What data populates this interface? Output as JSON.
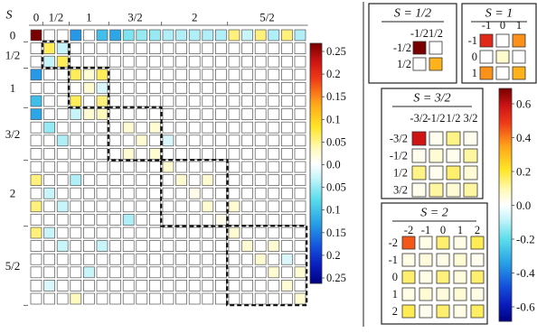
{
  "chart_data": [
    {
      "type": "heatmap",
      "name": "main-matrix",
      "row_axis_label": "S",
      "block_labels": [
        "0",
        "1/2",
        "1",
        "3/2",
        "2",
        "5/2"
      ],
      "block_sizes": [
        1,
        2,
        3,
        4,
        5,
        6
      ],
      "size": 21,
      "colorbar": {
        "ticks": [
          "0.25",
          "0.2",
          "0.15",
          "0.1",
          "0.05",
          "0.0",
          "0.05",
          "0.1",
          "0.15",
          "0.2",
          "0.25"
        ],
        "range": [
          -0.25,
          0.25
        ]
      },
      "cells": [
        [
          0,
          0,
          0.25
        ],
        [
          0,
          3,
          -0.13
        ],
        [
          0,
          5,
          -0.1
        ],
        [
          0,
          6,
          -0.12
        ],
        [
          0,
          7,
          -0.06
        ],
        [
          0,
          8,
          -0.05
        ],
        [
          0,
          9,
          -0.05
        ],
        [
          0,
          10,
          -0.04
        ],
        [
          0,
          11,
          -0.04
        ],
        [
          0,
          12,
          -0.04
        ],
        [
          0,
          13,
          -0.04
        ],
        [
          0,
          14,
          -0.04
        ],
        [
          0,
          15,
          0.05
        ],
        [
          0,
          16,
          -0.03
        ],
        [
          0,
          17,
          0.05
        ],
        [
          0,
          18,
          -0.04
        ],
        [
          0,
          19,
          0.05
        ],
        [
          0,
          20,
          -0.04
        ],
        [
          1,
          1,
          0.06
        ],
        [
          1,
          2,
          -0.03
        ],
        [
          2,
          1,
          -0.03
        ],
        [
          2,
          2,
          0.06
        ],
        [
          3,
          0,
          -0.13
        ],
        [
          5,
          0,
          -0.1
        ],
        [
          6,
          0,
          -0.12
        ],
        [
          3,
          3,
          0.06
        ],
        [
          3,
          4,
          0.02
        ],
        [
          3,
          5,
          0.06
        ],
        [
          4,
          4,
          0.02
        ],
        [
          4,
          5,
          -0.02
        ],
        [
          5,
          3,
          0.06
        ],
        [
          5,
          5,
          0.05
        ],
        [
          6,
          3,
          -0.03
        ],
        [
          6,
          4,
          0.02
        ],
        [
          6,
          5,
          0.03
        ],
        [
          7,
          1,
          -0.05
        ],
        [
          8,
          2,
          -0.04
        ],
        [
          7,
          7,
          0.02
        ],
        [
          8,
          8,
          0.02
        ],
        [
          9,
          9,
          0.02
        ],
        [
          10,
          10,
          0.02
        ],
        [
          7,
          9,
          0.02
        ],
        [
          9,
          7,
          0.02
        ],
        [
          8,
          10,
          -0.02
        ],
        [
          11,
          3,
          -0.04
        ],
        [
          12,
          1,
          -0.03
        ],
        [
          13,
          2,
          -0.03
        ],
        [
          11,
          0,
          0.05
        ],
        [
          13,
          0,
          0.05
        ],
        [
          15,
          0,
          0.05
        ],
        [
          15,
          1,
          -0.03
        ],
        [
          16,
          2,
          -0.03
        ],
        [
          11,
          11,
          0.02
        ],
        [
          12,
          12,
          0.01
        ],
        [
          13,
          13,
          0.02
        ],
        [
          14,
          14,
          0.01
        ],
        [
          15,
          15,
          0.02
        ],
        [
          11,
          13,
          0.02
        ],
        [
          13,
          15,
          0.02
        ],
        [
          14,
          7,
          -0.04
        ],
        [
          16,
          16,
          0.02
        ],
        [
          17,
          17,
          0.02
        ],
        [
          18,
          18,
          0.02
        ],
        [
          19,
          19,
          0.02
        ],
        [
          20,
          20,
          0.02
        ],
        [
          16,
          18,
          0.02
        ],
        [
          18,
          20,
          0.02
        ],
        [
          17,
          19,
          -0.02
        ],
        [
          16,
          5,
          -0.03
        ],
        [
          18,
          4,
          -0.03
        ],
        [
          19,
          1,
          -0.02
        ],
        [
          20,
          3,
          0.03
        ]
      ]
    },
    {
      "type": "heatmap",
      "name": "S-1/2",
      "title": "S = 1/2",
      "labels": [
        "-1/2",
        "1/2"
      ],
      "values": [
        [
          0.65,
          0.0
        ],
        [
          0.0,
          0.3
        ]
      ]
    },
    {
      "type": "heatmap",
      "name": "S-1",
      "title": "S = 1",
      "labels": [
        "-1",
        "0",
        "1"
      ],
      "values": [
        [
          0.5,
          0.0,
          0.35
        ],
        [
          0.0,
          0.06,
          0.0
        ],
        [
          0.35,
          0.0,
          0.3
        ]
      ]
    },
    {
      "type": "heatmap",
      "name": "S-3/2",
      "title": "S = 3/2",
      "labels": [
        "-3/2",
        "-1/2",
        "1/2",
        "3/2"
      ],
      "values": [
        [
          0.55,
          0.02,
          0.12,
          0.02
        ],
        [
          0.02,
          0.05,
          0.02,
          0.1
        ],
        [
          0.12,
          0.02,
          0.14,
          0.05
        ],
        [
          0.02,
          0.1,
          0.05,
          0.1
        ]
      ]
    },
    {
      "type": "heatmap",
      "name": "S-2",
      "title": "S = 2",
      "labels": [
        "-2",
        "-1",
        "0",
        "1",
        "2"
      ],
      "values": [
        [
          0.42,
          0.03,
          0.14,
          0.03,
          0.16
        ],
        [
          0.03,
          0.04,
          0.03,
          0.05,
          0.02
        ],
        [
          0.14,
          0.03,
          0.13,
          0.04,
          0.14
        ],
        [
          0.03,
          0.05,
          0.04,
          0.05,
          0.03
        ],
        [
          0.16,
          0.02,
          0.14,
          0.03,
          0.15
        ]
      ]
    }
  ],
  "right_colorbar": {
    "ticks": [
      "0.6",
      "0.4",
      "0.2",
      "0.0",
      "-0.2",
      "-0.4",
      "-0.6"
    ],
    "range": [
      -0.65,
      0.65
    ]
  }
}
